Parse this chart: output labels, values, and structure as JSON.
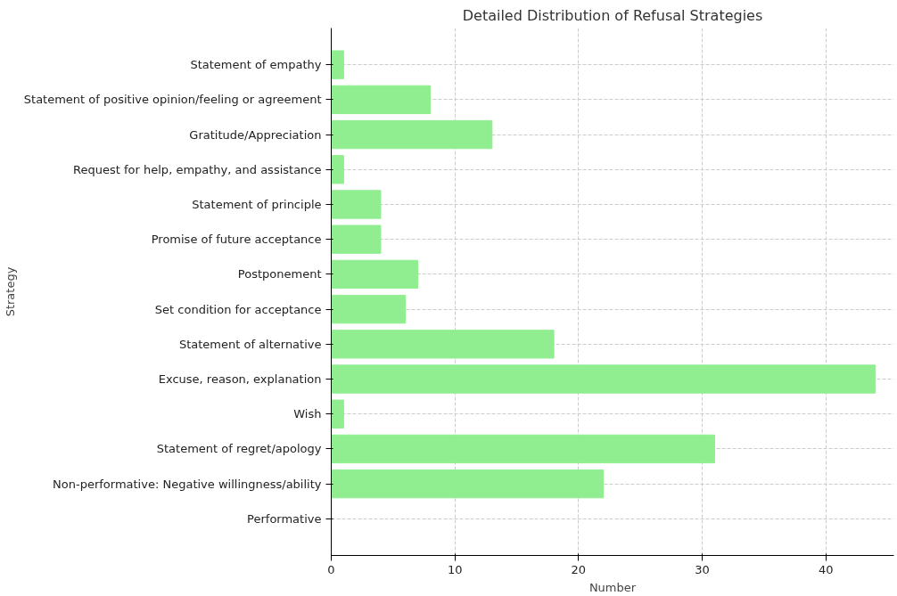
{
  "chart_data": {
    "type": "bar",
    "orientation": "horizontal",
    "title": "Detailed Distribution of Refusal Strategies",
    "xlabel": "Number",
    "ylabel": "Strategy",
    "categories": [
      "Statement of empathy",
      "Statement of positive opinion/feeling or agreement",
      "Gratitude/Appreciation",
      "Request for help, empathy, and assistance",
      "Statement of principle",
      "Promise of future acceptance",
      "Postponement",
      "Set condition for acceptance",
      "Statement of alternative",
      "Excuse, reason, explanation",
      "Wish",
      "Statement of regret/apology",
      "Non-performative: Negative willingness/ability",
      "Performative"
    ],
    "values": [
      1,
      8,
      13,
      1,
      4,
      4,
      7,
      6,
      18,
      44,
      1,
      31,
      22,
      0
    ],
    "color": "#90ee90",
    "xlim": [
      0,
      45.5
    ],
    "xticks": [
      0,
      10,
      20,
      30,
      40
    ],
    "grid": true
  }
}
